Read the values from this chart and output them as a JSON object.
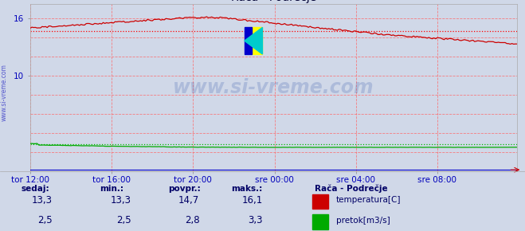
{
  "title": "Rača - Podrečje",
  "bg_color": "#d0d8e8",
  "grid_v_color": "#ff6666",
  "grid_h_color": "#ff6666",
  "avg_temp_line_color": "#ff0000",
  "avg_flow_line_color": "#00bb00",
  "watermark": "www.si-vreme.com",
  "label_color": "#0000bb",
  "ylabel_ticks": [
    10,
    16
  ],
  "ylim": [
    0,
    17.5
  ],
  "xlim_max": 287,
  "n_points": 288,
  "temp_color": "#cc0000",
  "flow_color": "#00aa00",
  "blue_line_color": "#0000cc",
  "avg_temp": 14.7,
  "avg_flow": 2.8,
  "x_tick_labels": [
    "tor 12:00",
    "tor 16:00",
    "tor 20:00",
    "sre 00:00",
    "sre 04:00",
    "sre 08:00"
  ],
  "x_tick_positions": [
    0,
    48,
    96,
    144,
    192,
    240
  ],
  "legend_title": "Rača - Podrečje",
  "legend_temp": "temperatura[C]",
  "legend_flow": "pretok[m3/s]",
  "stat_headers": [
    "sedaj:",
    "min.:",
    "povpr.:",
    "maks.:"
  ],
  "stat_temp": [
    "13,3",
    "13,3",
    "14,7",
    "16,1"
  ],
  "stat_flow": [
    "2,5",
    "2,5",
    "2,8",
    "3,3"
  ],
  "temp_rect_color": "#cc0000",
  "flow_rect_color": "#00aa00"
}
